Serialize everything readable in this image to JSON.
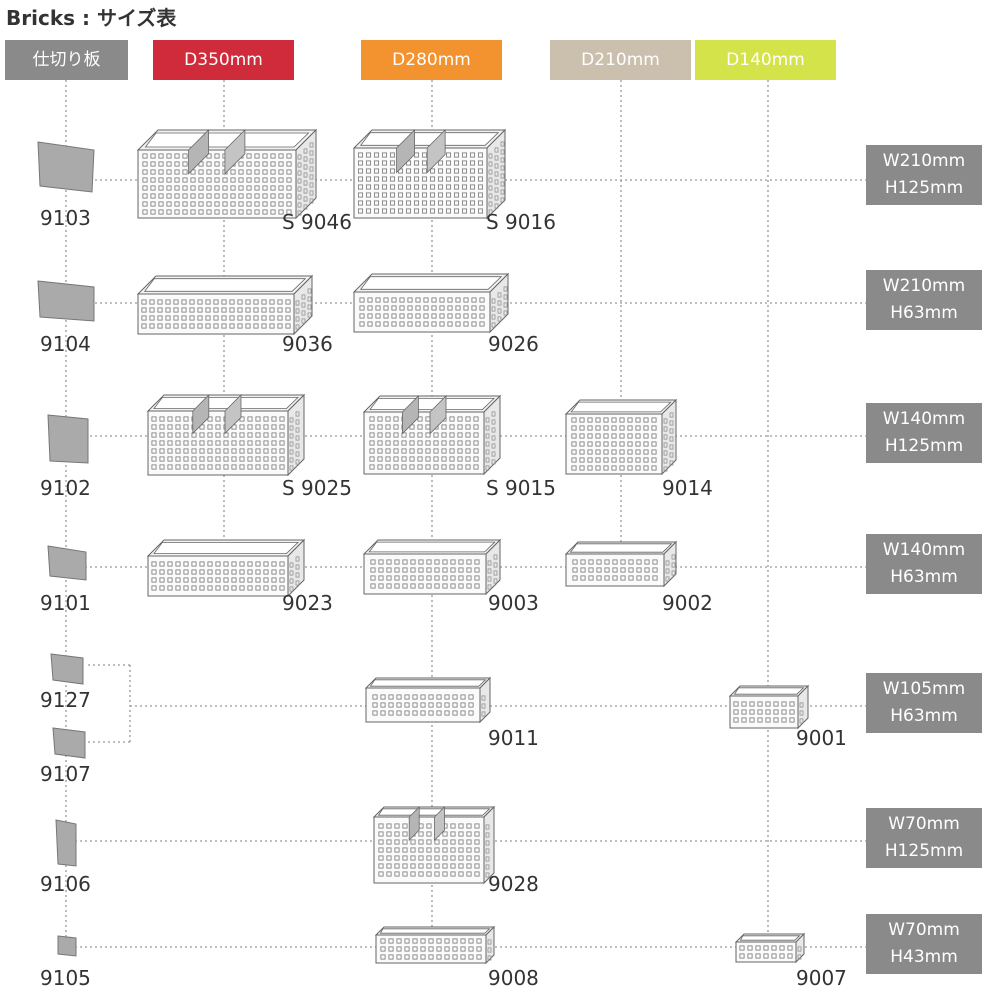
{
  "title": "Bricks : サイズ表",
  "headers": {
    "divider": {
      "label": "仕切り板",
      "color": "#8a8a8a"
    },
    "d350": {
      "label": "D350mm",
      "color": "#cf2b3a"
    },
    "d280": {
      "label": "D280mm",
      "color": "#f3932f"
    },
    "d210": {
      "label": "D210mm",
      "color": "#cbbfae"
    },
    "d140": {
      "label": "D140mm",
      "color": "#d5e34a"
    }
  },
  "rows": [
    {
      "size": {
        "w": "W210mm",
        "h": "H125mm"
      },
      "codes": {
        "divider": "9103",
        "d350": "S 9046",
        "d280": "S 9016"
      }
    },
    {
      "size": {
        "w": "W210mm",
        "h": "H63mm"
      },
      "codes": {
        "divider": "9104",
        "d350": "9036",
        "d280": "9026"
      }
    },
    {
      "size": {
        "w": "W140mm",
        "h": "H125mm"
      },
      "codes": {
        "divider": "9102",
        "d350": "S 9025",
        "d280": "S 9015",
        "d210": "9014"
      }
    },
    {
      "size": {
        "w": "W140mm",
        "h": "H63mm"
      },
      "codes": {
        "divider": "9101",
        "d350": "9023",
        "d280": "9003",
        "d210": "9002"
      }
    },
    {
      "size": {
        "w": "W105mm",
        "h": "H63mm"
      },
      "codes": {
        "divider_a": "9127",
        "divider_b": "9107",
        "d280": "9011",
        "d140": "9001"
      }
    },
    {
      "size": {
        "w": "W70mm",
        "h": "H125mm"
      },
      "codes": {
        "divider": "9106",
        "d280": "9028"
      }
    },
    {
      "size": {
        "w": "W70mm",
        "h": "H43mm"
      },
      "codes": {
        "divider": "9105",
        "d280": "9008",
        "d140": "9007"
      }
    }
  ]
}
